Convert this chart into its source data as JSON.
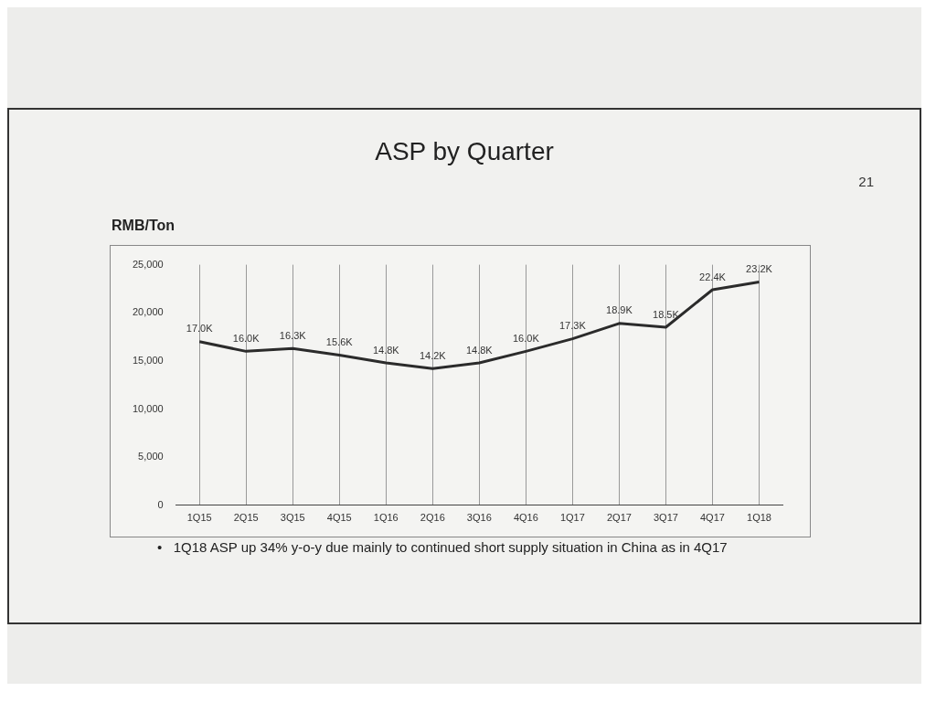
{
  "chart_data": {
    "type": "line",
    "title": "ASP by Quarter",
    "ylabel": "RMB/Ton",
    "categories": [
      "1Q15",
      "2Q15",
      "3Q15",
      "4Q15",
      "1Q16",
      "2Q16",
      "3Q16",
      "4Q16",
      "1Q17",
      "2Q17",
      "3Q17",
      "4Q17",
      "1Q18"
    ],
    "series": [
      {
        "color": "#2b2b2b",
        "values": [
          17000,
          16000,
          16300,
          15600,
          14800,
          14200,
          14800,
          16000,
          17300,
          18900,
          18500,
          22400,
          23200
        ],
        "value_labels": [
          "17.0K",
          "16.0K",
          "16.3K",
          "15.6K",
          "14.8K",
          "14.2K",
          "14.8K",
          "16.0K",
          "17.3K",
          "18.9K",
          "18.5K",
          "22.4K",
          "23.2K"
        ]
      }
    ],
    "ylim": [
      0,
      25000
    ],
    "yticks": [
      {
        "value": 0,
        "label": "0"
      },
      {
        "value": 5000,
        "label": "5,000"
      },
      {
        "value": 10000,
        "label": "10,000"
      },
      {
        "value": 15000,
        "label": "15,000"
      },
      {
        "value": 20000,
        "label": "20,000"
      },
      {
        "value": 25000,
        "label": "25,000"
      }
    ],
    "grid": "x",
    "legend": false,
    "marker": "none",
    "line_style": "solid",
    "annotations": [
      "21",
      "•   1Q18 ASP up 34% y-o-y due mainly to continued short supply situation in China as in 4Q17"
    ]
  }
}
